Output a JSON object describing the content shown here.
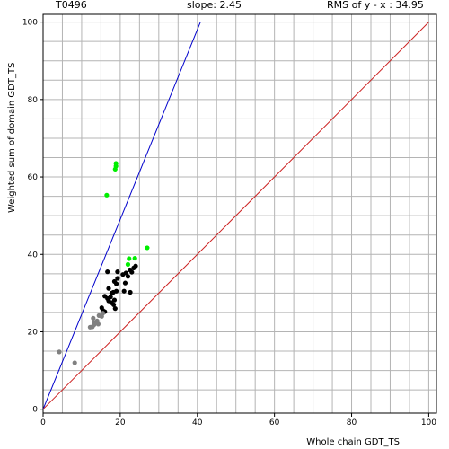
{
  "header": {
    "target": "T0496",
    "slope": "slope: 2.45",
    "rms": "RMS of  y - x : 34.95"
  },
  "colors": {
    "grid": "#b4b4b4",
    "axis": "#000000",
    "slope_line": "#0000cc",
    "diagonal": "#cc2222",
    "green": "#00ee00",
    "black": "#000000",
    "gray": "#808080"
  },
  "chart_data": {
    "type": "scatter",
    "xlabel": "Whole chain GDT_TS",
    "ylabel": "Weighted sum of domain GDT_TS",
    "xlim": [
      0,
      102
    ],
    "ylim": [
      -1,
      102
    ],
    "xticks": [
      0,
      20,
      40,
      60,
      80,
      100
    ],
    "yticks": [
      0,
      20,
      40,
      60,
      80,
      100
    ],
    "grid": true,
    "lines": [
      {
        "name": "slope-line",
        "x": [
          0,
          40.8
        ],
        "y": [
          0,
          100
        ],
        "color": "#0000cc"
      },
      {
        "name": "diagonal-line",
        "x": [
          0,
          100
        ],
        "y": [
          0,
          100
        ],
        "color": "#cc2222"
      }
    ],
    "series": [
      {
        "color": "#00ee00",
        "points": [
          [
            18.9,
            63.5
          ],
          [
            18.9,
            62.8
          ],
          [
            18.7,
            62.0
          ],
          [
            16.5,
            55.3
          ],
          [
            27.0,
            41.7
          ],
          [
            22.3,
            38.9
          ],
          [
            23.8,
            39.0
          ],
          [
            22.0,
            37.4
          ]
        ]
      },
      {
        "color": "#000000",
        "points": [
          [
            24.0,
            37.0
          ],
          [
            23.5,
            36.5
          ],
          [
            22.5,
            36.0
          ],
          [
            23.0,
            35.4
          ],
          [
            21.5,
            35.2
          ],
          [
            20.7,
            34.8
          ],
          [
            22.0,
            34.3
          ],
          [
            16.7,
            35.5
          ],
          [
            19.3,
            35.5
          ],
          [
            19.3,
            33.8
          ],
          [
            18.5,
            33.0
          ],
          [
            19.0,
            32.4
          ],
          [
            21.3,
            32.6
          ],
          [
            17.0,
            31.2
          ],
          [
            19.0,
            30.5
          ],
          [
            21.0,
            30.5
          ],
          [
            22.6,
            30.2
          ],
          [
            17.8,
            30.0
          ],
          [
            18.2,
            30.2
          ],
          [
            16.0,
            29.2
          ],
          [
            16.7,
            28.6
          ],
          [
            17.5,
            29.0
          ],
          [
            17.0,
            28.0
          ],
          [
            18.5,
            28.2
          ],
          [
            17.7,
            27.5
          ],
          [
            18.3,
            27.0
          ],
          [
            15.2,
            26.2
          ],
          [
            18.7,
            26.0
          ],
          [
            15.5,
            25.5
          ],
          [
            16.0,
            25.2
          ]
        ]
      },
      {
        "color": "#808080",
        "points": [
          [
            15.5,
            24.8
          ],
          [
            14.5,
            24.2
          ],
          [
            15.2,
            24.0
          ],
          [
            13.0,
            23.5
          ],
          [
            14.0,
            22.8
          ],
          [
            13.2,
            22.4
          ],
          [
            14.3,
            22.0
          ],
          [
            12.8,
            21.3
          ],
          [
            13.2,
            21.8
          ],
          [
            12.2,
            21.2
          ],
          [
            4.2,
            14.8
          ],
          [
            8.2,
            12.0
          ]
        ]
      }
    ]
  }
}
